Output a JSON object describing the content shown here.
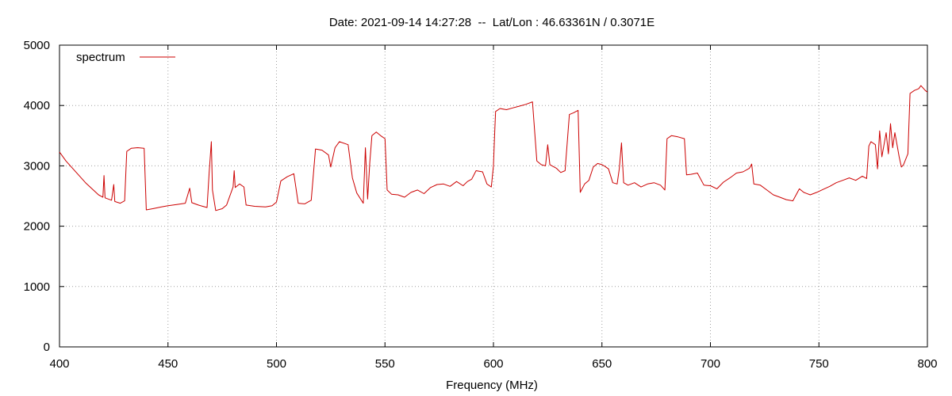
{
  "chart_data": {
    "type": "line",
    "title": "Date: 2021-09-14 14:27:28  --  Lat/Lon : 46.63361N / 0.3071E",
    "xlabel": "Frequency (MHz)",
    "ylabel": "",
    "xlim": [
      400,
      800
    ],
    "ylim": [
      0,
      5000
    ],
    "xticks": [
      400,
      450,
      500,
      550,
      600,
      650,
      700,
      750,
      800
    ],
    "yticks": [
      0,
      1000,
      2000,
      3000,
      4000,
      5000
    ],
    "grid": true,
    "legend_position": "top-left",
    "series": [
      {
        "name": "spectrum",
        "color": "#cc0000",
        "points": [
          [
            400,
            3230
          ],
          [
            403,
            3080
          ],
          [
            406,
            2960
          ],
          [
            409,
            2840
          ],
          [
            412,
            2720
          ],
          [
            415,
            2620
          ],
          [
            418,
            2520
          ],
          [
            420,
            2480
          ],
          [
            420.5,
            2840
          ],
          [
            421,
            2470
          ],
          [
            424,
            2430
          ],
          [
            425,
            2690
          ],
          [
            425.5,
            2410
          ],
          [
            428,
            2380
          ],
          [
            430,
            2420
          ],
          [
            431,
            3240
          ],
          [
            433,
            3290
          ],
          [
            436,
            3300
          ],
          [
            439,
            3290
          ],
          [
            440,
            2270
          ],
          [
            443,
            2290
          ],
          [
            447,
            2320
          ],
          [
            450,
            2340
          ],
          [
            454,
            2360
          ],
          [
            458,
            2380
          ],
          [
            460,
            2630
          ],
          [
            461,
            2390
          ],
          [
            464,
            2350
          ],
          [
            466,
            2330
          ],
          [
            468,
            2310
          ],
          [
            469,
            2900
          ],
          [
            470,
            3400
          ],
          [
            470.5,
            2600
          ],
          [
            472,
            2260
          ],
          [
            475,
            2290
          ],
          [
            477,
            2350
          ],
          [
            480,
            2650
          ],
          [
            480.5,
            2920
          ],
          [
            481,
            2640
          ],
          [
            483,
            2700
          ],
          [
            485,
            2650
          ],
          [
            486,
            2350
          ],
          [
            490,
            2330
          ],
          [
            495,
            2320
          ],
          [
            498,
            2340
          ],
          [
            500,
            2400
          ],
          [
            502,
            2750
          ],
          [
            505,
            2820
          ],
          [
            508,
            2870
          ],
          [
            510,
            2380
          ],
          [
            513,
            2370
          ],
          [
            516,
            2430
          ],
          [
            518,
            3280
          ],
          [
            521,
            3260
          ],
          [
            524,
            3180
          ],
          [
            525,
            2980
          ],
          [
            527,
            3300
          ],
          [
            529,
            3400
          ],
          [
            533,
            3350
          ],
          [
            535,
            2800
          ],
          [
            537,
            2550
          ],
          [
            540,
            2380
          ],
          [
            541,
            3300
          ],
          [
            542,
            2450
          ],
          [
            543,
            3050
          ],
          [
            544,
            3500
          ],
          [
            546,
            3560
          ],
          [
            548,
            3500
          ],
          [
            550,
            3450
          ],
          [
            551,
            2600
          ],
          [
            553,
            2530
          ],
          [
            556,
            2520
          ],
          [
            559,
            2480
          ],
          [
            562,
            2560
          ],
          [
            565,
            2600
          ],
          [
            568,
            2540
          ],
          [
            571,
            2640
          ],
          [
            574,
            2690
          ],
          [
            577,
            2700
          ],
          [
            580,
            2660
          ],
          [
            583,
            2740
          ],
          [
            586,
            2670
          ],
          [
            588,
            2740
          ],
          [
            590,
            2780
          ],
          [
            592,
            2920
          ],
          [
            595,
            2900
          ],
          [
            597,
            2700
          ],
          [
            599,
            2650
          ],
          [
            600,
            3000
          ],
          [
            600.5,
            3500
          ],
          [
            601,
            3900
          ],
          [
            603,
            3950
          ],
          [
            606,
            3930
          ],
          [
            609,
            3960
          ],
          [
            612,
            3990
          ],
          [
            615,
            4020
          ],
          [
            618,
            4060
          ],
          [
            620,
            3080
          ],
          [
            622,
            3020
          ],
          [
            624,
            3000
          ],
          [
            625,
            3350
          ],
          [
            626,
            3020
          ],
          [
            629,
            2960
          ],
          [
            631,
            2890
          ],
          [
            633,
            2920
          ],
          [
            635,
            3850
          ],
          [
            637,
            3880
          ],
          [
            639,
            3920
          ],
          [
            640,
            2560
          ],
          [
            642,
            2700
          ],
          [
            644,
            2760
          ],
          [
            646,
            2980
          ],
          [
            648,
            3040
          ],
          [
            650,
            3020
          ],
          [
            651,
            3000
          ],
          [
            653,
            2950
          ],
          [
            655,
            2720
          ],
          [
            657,
            2700
          ],
          [
            658,
            2950
          ],
          [
            659,
            3380
          ],
          [
            660,
            2720
          ],
          [
            662,
            2680
          ],
          [
            665,
            2720
          ],
          [
            668,
            2650
          ],
          [
            671,
            2700
          ],
          [
            674,
            2720
          ],
          [
            677,
            2680
          ],
          [
            679,
            2600
          ],
          [
            680,
            3450
          ],
          [
            682,
            3500
          ],
          [
            685,
            3480
          ],
          [
            688,
            3450
          ],
          [
            689,
            2850
          ],
          [
            691,
            2860
          ],
          [
            694,
            2880
          ],
          [
            697,
            2680
          ],
          [
            700,
            2670
          ],
          [
            703,
            2620
          ],
          [
            706,
            2730
          ],
          [
            709,
            2800
          ],
          [
            712,
            2880
          ],
          [
            715,
            2900
          ],
          [
            718,
            2960
          ],
          [
            719,
            3030
          ],
          [
            720,
            2700
          ],
          [
            723,
            2680
          ],
          [
            726,
            2600
          ],
          [
            729,
            2520
          ],
          [
            732,
            2480
          ],
          [
            735,
            2440
          ],
          [
            738,
            2420
          ],
          [
            741,
            2620
          ],
          [
            743,
            2560
          ],
          [
            746,
            2520
          ],
          [
            749,
            2560
          ],
          [
            752,
            2610
          ],
          [
            755,
            2660
          ],
          [
            758,
            2720
          ],
          [
            761,
            2760
          ],
          [
            764,
            2800
          ],
          [
            767,
            2760
          ],
          [
            770,
            2830
          ],
          [
            772,
            2790
          ],
          [
            773,
            3330
          ],
          [
            774,
            3400
          ],
          [
            776,
            3350
          ],
          [
            777,
            2950
          ],
          [
            778,
            3580
          ],
          [
            779,
            3150
          ],
          [
            781,
            3550
          ],
          [
            782,
            3200
          ],
          [
            783,
            3700
          ],
          [
            784,
            3300
          ],
          [
            785,
            3550
          ],
          [
            787,
            3150
          ],
          [
            788,
            2980
          ],
          [
            789,
            3020
          ],
          [
            791,
            3200
          ],
          [
            792,
            4200
          ],
          [
            794,
            4250
          ],
          [
            796,
            4280
          ],
          [
            797,
            4330
          ],
          [
            799,
            4250
          ],
          [
            800,
            4220
          ]
        ]
      }
    ]
  }
}
